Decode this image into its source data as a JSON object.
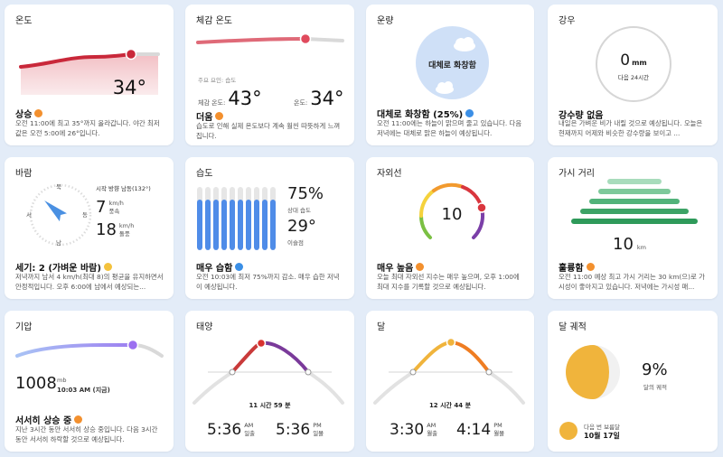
{
  "temperature": {
    "title": "온도",
    "value": "34°",
    "summary": "상승",
    "description": "오전 11:00에 최고 35°까지 올라갑니다. 야간 최저값은 오전 5:00에 26°입니다.",
    "position": 0.78
  },
  "feels_like": {
    "title": "체감 온도",
    "main_factor_label": "주요 요인: 습도",
    "feels_label": "체감 온도:",
    "feels_value": "43°",
    "temp_label": "온도:",
    "temp_value": "34°",
    "summary": "더움",
    "description": "습도로 인해 실제 온도보다 계속 훨씬 따뜻하게 느껴집니다.",
    "position": 0.72
  },
  "cloud": {
    "title": "운량",
    "center_label": "대체로 화창함",
    "summary": "대체로 화창함 (25%)",
    "description": "오전 11:00에는 하늘이 맑으며 줄고 있습니다. 다음 저녁에는 대체로 맑은 하늘이 예상됩니다."
  },
  "rain": {
    "title": "강우",
    "value": "0",
    "unit": "mm",
    "sub": "다음 24시간",
    "summary": "강수량 없음",
    "description": "내일은 가벼운 비가 내릴 것으로 예상됩니다. 오늘은 현재까지 어제와 비슷한 강수량을 보이고 ..."
  },
  "wind": {
    "title": "바람",
    "direction_text": "시작 방향 남동(132°)",
    "speed": "7",
    "speed_unit": "km/h",
    "speed_label": "풍속",
    "gust": "18",
    "gust_unit": "km/h",
    "gust_label": "돌풍",
    "compass": {
      "n": "북",
      "e": "동",
      "s": "남",
      "w": "서"
    },
    "direction_deg": 132,
    "summary": "세기: 2 (가벼운 바람)",
    "description": "저녁까지 남서 4 km/h(최대 8)의 평균을 유지하면서 안정적입니다. 오후 6:00에 남에서 예상되는..."
  },
  "humidity": {
    "title": "습도",
    "value": "75%",
    "value_label": "상대 습도",
    "dew": "29°",
    "dew_label": "이슬점",
    "bars": [
      0.8,
      0.8,
      0.8,
      0.8,
      0.8,
      0.8,
      0.8,
      0.8,
      0.8,
      0.8
    ],
    "summary": "매우 습함",
    "description": "오전 10:03에 최저 75%까지 감소. 매우 습한 저녁이 예상됩니다."
  },
  "uv": {
    "title": "자외선",
    "value": "10",
    "level_fraction": 0.82,
    "summary": "매우 높음",
    "description": "오늘 최대 자외선 지수는 매우 높으며, 오후 1:00에 최대 지수를 기록할 것으로 예상됩니다."
  },
  "visibility": {
    "title": "가시 거리",
    "value": "10",
    "unit": "km",
    "summary": "훌륭함",
    "description": "오전 11:00 예상 최고 가시 거리는 30 km(으)로 가시성이 좋아지고 있습니다. 저녁에는 가시성 매..."
  },
  "pressure": {
    "title": "기압",
    "value": "1008",
    "unit": "mb",
    "time": "10:03 AM (지금)",
    "summary": "서서히 상승 중",
    "description": "지난 3시간 동안 서서히 상승 중입니다. 다음 3시간 동안 서서히 하락할 것으로 예상됩니다."
  },
  "sun": {
    "title": "태양",
    "duration": "11 시간 59 분",
    "rise_time": "5:36",
    "rise_ampm": "AM",
    "rise_label": "일출",
    "set_time": "5:36",
    "set_ampm": "PM",
    "set_label": "일몰",
    "progress": 0.36
  },
  "moon": {
    "title": "달",
    "duration": "12 시간 44 분",
    "rise_time": "3:30",
    "rise_ampm": "AM",
    "rise_label": "월출",
    "set_time": "4:14",
    "set_ampm": "PM",
    "set_label": "월몰",
    "progress": 0.52
  },
  "moon_phase": {
    "title": "달 궤적",
    "value": "9%",
    "value_label": "달의 궤적",
    "next_label": "다음 번 보름달",
    "next_date": "10월 17일"
  },
  "colors": {
    "temp_line": "#c9283a",
    "orange_badge": "#f3902e",
    "blue_badge": "#3b8fe6",
    "humidity_bar": "#4f8ce8",
    "visibility_bar": "#2e9a5a",
    "pressure_line": "#8a9cf0",
    "moon_yellow": "#f0b43c"
  }
}
